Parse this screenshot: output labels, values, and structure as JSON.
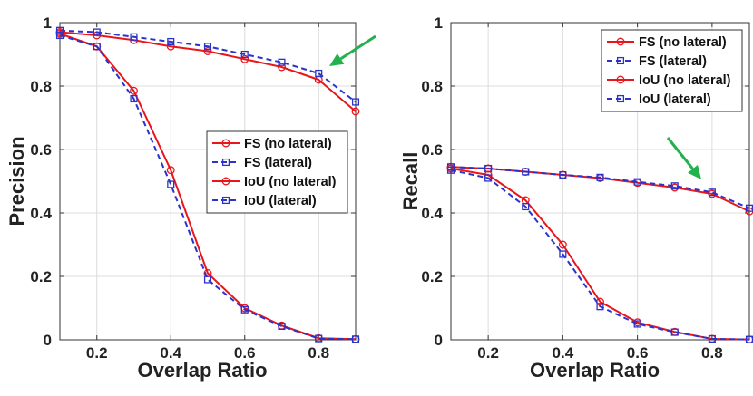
{
  "chart_data": [
    {
      "type": "line",
      "title": "",
      "xlabel": "Overlap Ratio",
      "ylabel": "Precision",
      "xlim": [
        0.1,
        0.9
      ],
      "ylim": [
        0,
        1
      ],
      "xticks": [
        0.2,
        0.4,
        0.6,
        0.8
      ],
      "yticks": [
        0,
        0.2,
        0.4,
        0.6,
        0.8,
        1
      ],
      "xtick_labels": [
        "0.2",
        "0.4",
        "0.6",
        "0.8"
      ],
      "ytick_labels": [
        "0",
        "0.2",
        "0.4",
        "0.6",
        "0.8",
        "1"
      ],
      "grid": true,
      "legend_position": "center-right",
      "x": [
        0.1,
        0.2,
        0.3,
        0.4,
        0.5,
        0.6,
        0.7,
        0.8,
        0.9
      ],
      "series": [
        {
          "name": "FS (no lateral)",
          "color": "#e8161b",
          "style": "solid",
          "marker": "circle",
          "values": [
            0.97,
            0.96,
            0.945,
            0.925,
            0.91,
            0.885,
            0.86,
            0.82,
            0.72
          ]
        },
        {
          "name": "FS (lateral)",
          "color": "#2a33cc",
          "style": "dashed",
          "marker": "square",
          "values": [
            0.975,
            0.97,
            0.955,
            0.94,
            0.925,
            0.9,
            0.875,
            0.84,
            0.75
          ]
        },
        {
          "name": "IoU (no lateral)",
          "color": "#e8161b",
          "style": "solid",
          "marker": "circle",
          "values": [
            0.965,
            0.925,
            0.785,
            0.535,
            0.21,
            0.1,
            0.045,
            0.005,
            0.002
          ]
        },
        {
          "name": "IoU (lateral)",
          "color": "#2a33cc",
          "style": "dashed",
          "marker": "square",
          "values": [
            0.96,
            0.925,
            0.76,
            0.49,
            0.19,
            0.095,
            0.043,
            0.004,
            0.002
          ]
        }
      ],
      "annotations": [
        {
          "type": "arrow",
          "color": "#22b14c",
          "points_to_x": 0.8,
          "points_to_y": 0.84
        }
      ]
    },
    {
      "type": "line",
      "title": "",
      "xlabel": "Overlap Ratio",
      "ylabel": "Recall",
      "xlim": [
        0.1,
        0.9
      ],
      "ylim": [
        0,
        1
      ],
      "xticks": [
        0.2,
        0.4,
        0.6,
        0.8
      ],
      "yticks": [
        0,
        0.2,
        0.4,
        0.6,
        0.8,
        1
      ],
      "xtick_labels": [
        "0.2",
        "0.4",
        "0.6",
        "0.8"
      ],
      "ytick_labels": [
        "0",
        "0.2",
        "0.4",
        "0.6",
        "0.8",
        "1"
      ],
      "grid": true,
      "legend_position": "top-right",
      "x": [
        0.1,
        0.2,
        0.3,
        0.4,
        0.5,
        0.6,
        0.7,
        0.8,
        0.9
      ],
      "series": [
        {
          "name": "FS (no lateral)",
          "color": "#e8161b",
          "style": "solid",
          "marker": "circle",
          "values": [
            0.545,
            0.54,
            0.53,
            0.52,
            0.51,
            0.495,
            0.48,
            0.46,
            0.405
          ]
        },
        {
          "name": "FS (lateral)",
          "color": "#2a33cc",
          "style": "dashed",
          "marker": "square",
          "values": [
            0.545,
            0.54,
            0.53,
            0.52,
            0.512,
            0.498,
            0.485,
            0.465,
            0.415
          ]
        },
        {
          "name": "IoU (no lateral)",
          "color": "#e8161b",
          "style": "solid",
          "marker": "circle",
          "values": [
            0.54,
            0.52,
            0.44,
            0.3,
            0.12,
            0.055,
            0.025,
            0.003,
            0.001
          ]
        },
        {
          "name": "IoU (lateral)",
          "color": "#2a33cc",
          "style": "dashed",
          "marker": "square",
          "values": [
            0.535,
            0.51,
            0.42,
            0.27,
            0.105,
            0.05,
            0.024,
            0.003,
            0.001
          ]
        }
      ],
      "annotations": [
        {
          "type": "arrow",
          "color": "#22b14c",
          "points_to_x": 0.78,
          "points_to_y": 0.5
        }
      ]
    }
  ]
}
